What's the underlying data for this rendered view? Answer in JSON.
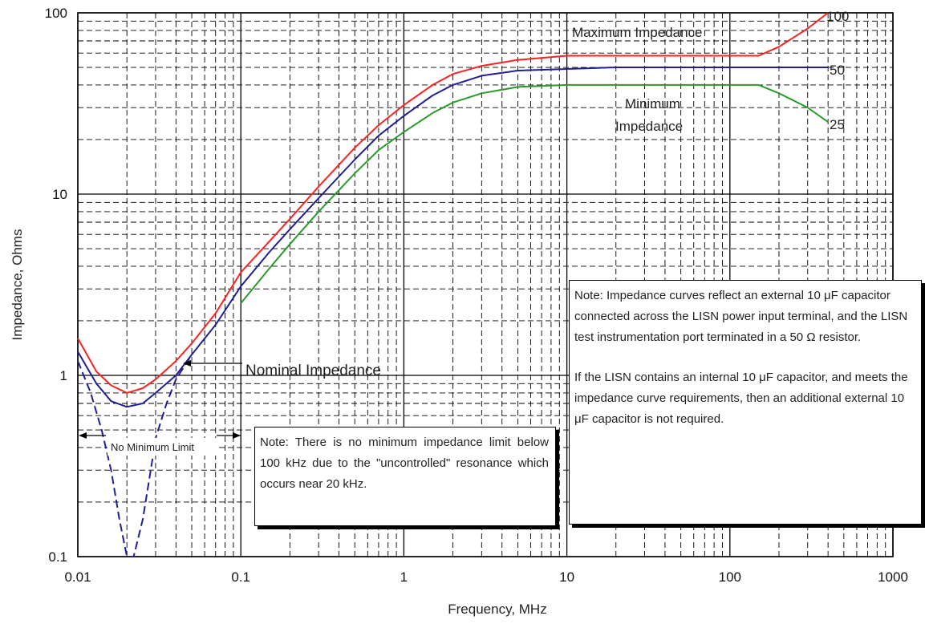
{
  "chart_data": {
    "type": "line",
    "xscale": "log",
    "yscale": "log",
    "xlim": [
      0.01,
      1000
    ],
    "ylim": [
      0.1,
      100
    ],
    "xlabel": "Frequency, MHz",
    "ylabel": "Impedance, Ohms",
    "grid": true,
    "x_ticks": [
      "0.01",
      "0.1",
      "1",
      "10",
      "100",
      "1000"
    ],
    "y_ticks": [
      "0.1",
      "1",
      "10",
      "100"
    ],
    "series": [
      {
        "id": "maximum",
        "color": "#ff2020",
        "x": [
          0.01,
          0.013,
          0.016,
          0.02,
          0.025,
          0.03,
          0.04,
          0.05,
          0.07,
          0.1,
          0.15,
          0.2,
          0.3,
          0.5,
          0.7,
          1,
          1.5,
          2,
          3,
          5,
          10,
          20,
          50,
          100,
          150,
          200,
          300,
          400
        ],
        "y": [
          1.6,
          1.05,
          0.88,
          0.8,
          0.85,
          0.95,
          1.2,
          1.5,
          2.2,
          3.7,
          5.5,
          7.3,
          11,
          18,
          24,
          31,
          40,
          46,
          51,
          55,
          58,
          58,
          58,
          58,
          58,
          65,
          82,
          100
        ]
      },
      {
        "id": "nominal",
        "color": "#1e1e96",
        "x": [
          0.01,
          0.013,
          0.016,
          0.02,
          0.025,
          0.03,
          0.04,
          0.05,
          0.07,
          0.1,
          0.15,
          0.2,
          0.3,
          0.5,
          0.7,
          1,
          1.5,
          2,
          3,
          5,
          10,
          20,
          50,
          100,
          200,
          400
        ],
        "y": [
          1.35,
          0.9,
          0.72,
          0.67,
          0.7,
          0.8,
          1.0,
          1.3,
          1.9,
          3.1,
          4.8,
          6.4,
          9.5,
          15.5,
          21,
          27,
          35,
          40,
          45,
          48,
          49,
          50,
          50,
          50,
          50,
          50
        ]
      },
      {
        "id": "nominal-resonance",
        "color": "#1e1e96",
        "dashed": true,
        "x": [
          0.01,
          0.012,
          0.014,
          0.016,
          0.018,
          0.02,
          0.022,
          0.025,
          0.028,
          0.03,
          0.035,
          0.04,
          0.05
        ],
        "y": [
          1.2,
          0.8,
          0.5,
          0.3,
          0.16,
          0.1,
          0.1,
          0.16,
          0.3,
          0.45,
          0.7,
          0.95,
          1.3
        ]
      },
      {
        "id": "minimum",
        "color": "#2a9a2a",
        "x": [
          0.1,
          0.15,
          0.2,
          0.3,
          0.5,
          0.7,
          1,
          1.5,
          2,
          3,
          5,
          10,
          20,
          50,
          100,
          150,
          200,
          300,
          400
        ],
        "y": [
          2.5,
          3.9,
          5.3,
          8,
          13,
          17.5,
          22,
          28,
          32,
          36,
          39,
          40,
          40,
          40,
          40,
          40,
          36,
          30,
          25
        ]
      }
    ],
    "annotations": {
      "max_label": "Maximum Impedance",
      "min_label_line1": "Minimum",
      "min_label_line2": "Impedance",
      "nominal_label": "Nominal Impedance",
      "no_min_limit": "No Minimum Limit",
      "end_100": "100",
      "end_50": "50",
      "end_25": "25"
    }
  },
  "notes": {
    "lisn_para1": "Note:  Impedance curves reflect an external 10 μF capacitor connected across the LISN power input terminal, and the LISN test instrumentation port terminated in a 50 Ω resistor.",
    "lisn_para2": "If the LISN contains an internal 10 μF capacitor, and meets the impedance curve requirements, then an additional external 10 μF capacitor is not required.",
    "min_note": "Note:  There is no minimum impedance limit below 100 kHz due to the \"uncontrolled\" resonance which occurs near 20 kHz."
  }
}
